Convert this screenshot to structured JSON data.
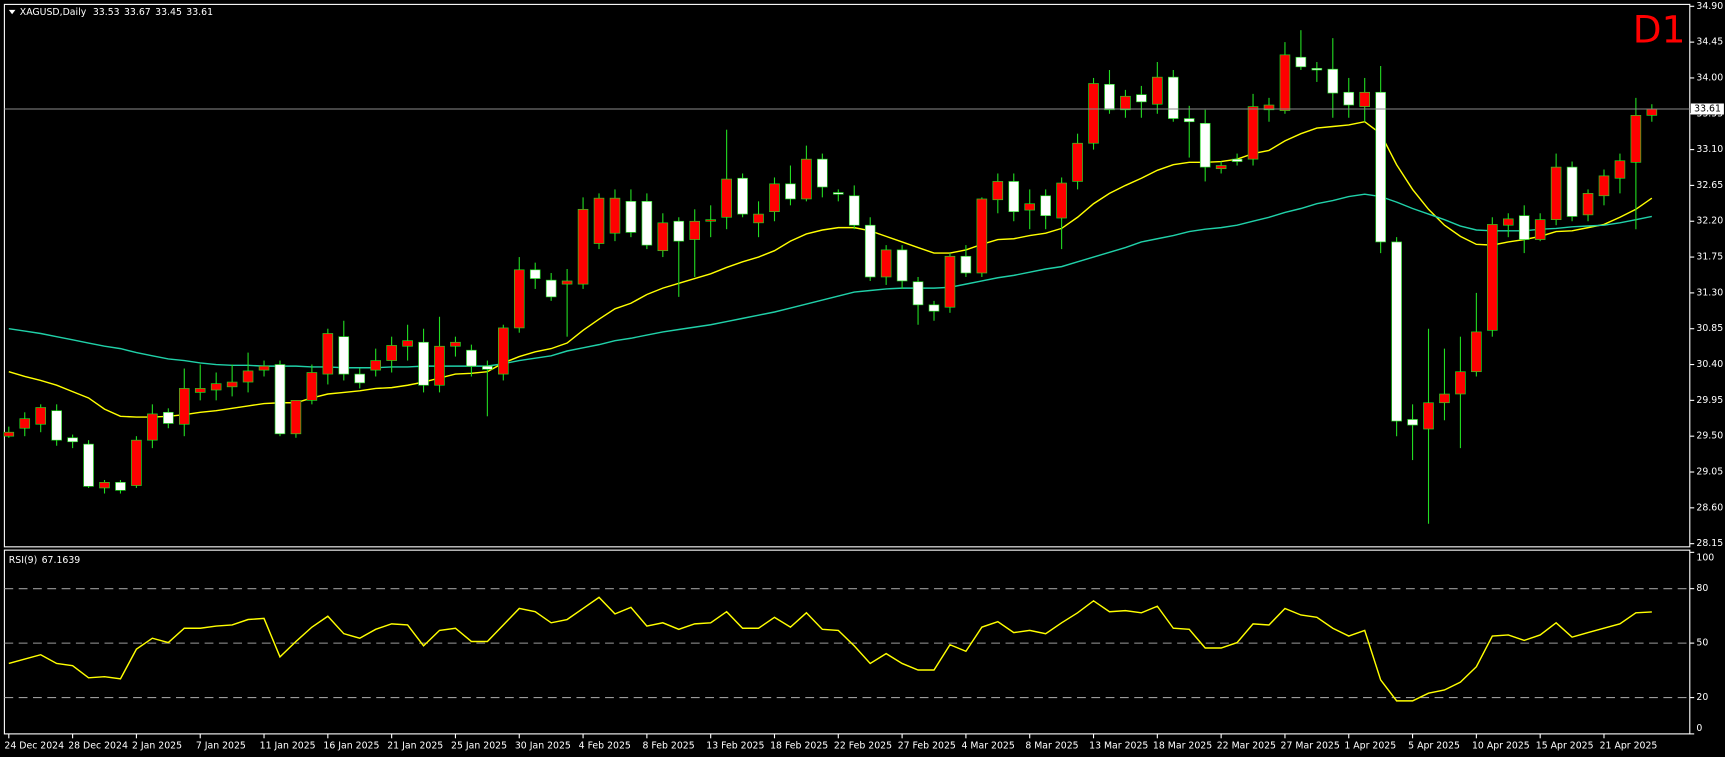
{
  "chart_data": [
    {
      "type": "candlestick",
      "symbol": "XAGUSD,Daily",
      "timeframe": "D1",
      "up_color": "#ff0000",
      "down_color": "#ffffff",
      "wick_color": "#22dd22",
      "bid_line_color": "#8a8a8a",
      "ylim": [
        28.11,
        34.91
      ],
      "yticks": [
        {
          "value": 34.9,
          "label": "34.90"
        },
        34.45,
        {
          "value": 34.0,
          "label": "34.00"
        },
        33.55,
        {
          "value": 33.1,
          "label": "33.10"
        },
        32.65,
        {
          "value": 32.2,
          "label": "32.20"
        },
        31.75,
        {
          "value": 31.3,
          "label": "31.30"
        },
        30.85,
        {
          "value": 30.4,
          "label": "30.40"
        },
        29.95,
        {
          "value": 29.5,
          "label": "29.50"
        },
        29.05,
        {
          "value": 28.6,
          "label": "28.60"
        },
        28.15
      ],
      "categories": [
        "24 Dec 2024",
        null,
        null,
        null,
        "28 Dec 2024",
        null,
        null,
        null,
        "2 Jan 2025",
        null,
        null,
        null,
        "7 Jan 2025",
        null,
        null,
        null,
        "11 Jan 2025",
        null,
        null,
        null,
        "16 Jan 2025",
        null,
        null,
        null,
        "21 Jan 2025",
        null,
        null,
        null,
        "25 Jan 2025",
        null,
        null,
        null,
        "30 Jan 2025",
        null,
        null,
        null,
        "4 Feb 2025",
        null,
        null,
        null,
        "8 Feb 2025",
        null,
        null,
        null,
        "13 Feb 2025",
        null,
        null,
        null,
        "18 Feb 2025",
        null,
        null,
        null,
        "22 Feb 2025",
        null,
        null,
        null,
        "27 Feb 2025",
        null,
        null,
        null,
        "4 Mar 2025",
        null,
        null,
        null,
        "8 Mar 2025",
        null,
        null,
        null,
        "13 Mar 2025",
        null,
        null,
        null,
        "18 Mar 2025",
        null,
        null,
        null,
        "22 Mar 2025",
        null,
        null,
        null,
        "27 Mar 2025",
        null,
        null,
        null,
        "1 Apr 2025",
        null,
        null,
        null,
        "5 Apr 2025",
        null,
        null,
        null,
        "10 Apr 2025",
        null,
        null,
        null,
        "15 Apr 2025",
        null,
        null,
        null,
        "21 Apr 2025",
        null,
        null,
        null
      ],
      "open": [
        29.5,
        29.6,
        29.65,
        29.82,
        29.48,
        29.4,
        28.85,
        28.92,
        28.88,
        29.45,
        29.8,
        29.65,
        30.05,
        30.08,
        30.12,
        30.18,
        30.33,
        30.4,
        29.53,
        29.95,
        30.28,
        30.75,
        30.28,
        30.33,
        30.45,
        30.63,
        30.68,
        30.14,
        30.63,
        30.58,
        30.38,
        30.28,
        30.86,
        31.59,
        31.46,
        31.41,
        31.41,
        31.92,
        32.05,
        32.45,
        32.45,
        31.83,
        32.2,
        31.97,
        32.2,
        32.25,
        32.74,
        32.18,
        32.32,
        32.67,
        32.48,
        32.98,
        32.56,
        32.52,
        32.15,
        31.5,
        31.84,
        31.44,
        31.15,
        31.12,
        31.76,
        31.55,
        32.47,
        32.7,
        32.34,
        32.52,
        32.24,
        32.7,
        33.18,
        33.92,
        33.6,
        33.79,
        33.67,
        34.01,
        33.49,
        33.43,
        32.86,
        32.98,
        32.98,
        33.6,
        33.59,
        34.26,
        34.12,
        34.11,
        33.82,
        33.64,
        33.82,
        31.94,
        29.71,
        29.59,
        29.92,
        30.03,
        30.31,
        30.83,
        32.15,
        32.27,
        31.97,
        32.22,
        32.88,
        32.28,
        32.52,
        32.74,
        32.94,
        33.53
      ],
      "high": [
        29.62,
        29.8,
        29.9,
        29.9,
        29.52,
        29.45,
        28.95,
        28.95,
        29.5,
        29.9,
        29.85,
        30.35,
        30.4,
        30.3,
        30.4,
        30.55,
        30.45,
        30.45,
        29.95,
        30.4,
        30.85,
        30.95,
        30.35,
        30.6,
        30.75,
        30.9,
        30.85,
        31.0,
        30.75,
        30.65,
        30.45,
        30.9,
        31.75,
        31.68,
        31.55,
        31.6,
        32.5,
        32.55,
        32.6,
        32.6,
        32.55,
        32.3,
        32.25,
        32.35,
        32.4,
        33.35,
        32.8,
        32.45,
        32.75,
        32.9,
        33.15,
        33.05,
        32.6,
        32.65,
        32.25,
        31.9,
        31.9,
        31.5,
        31.2,
        31.8,
        31.9,
        32.5,
        32.8,
        32.8,
        32.6,
        32.6,
        32.75,
        33.3,
        34.0,
        34.1,
        33.85,
        33.9,
        34.2,
        34.1,
        33.65,
        33.6,
        32.95,
        33.05,
        33.8,
        33.75,
        34.45,
        34.6,
        34.2,
        34.5,
        34.0,
        34.0,
        34.15,
        32.0,
        29.9,
        30.85,
        30.6,
        30.75,
        31.3,
        32.25,
        32.3,
        32.4,
        32.3,
        33.05,
        32.95,
        32.6,
        32.85,
        33.05,
        33.75,
        33.67
      ],
      "low": [
        29.48,
        29.5,
        29.55,
        29.38,
        29.35,
        28.85,
        28.78,
        28.78,
        28.85,
        29.35,
        29.6,
        29.5,
        29.95,
        29.95,
        30.0,
        30.05,
        30.25,
        29.5,
        29.48,
        29.9,
        30.15,
        30.2,
        30.1,
        30.25,
        30.3,
        30.45,
        30.05,
        30.05,
        30.5,
        30.25,
        29.75,
        30.2,
        30.8,
        31.35,
        31.2,
        30.75,
        31.35,
        31.85,
        31.95,
        32.0,
        31.85,
        31.75,
        31.25,
        31.5,
        32.0,
        32.1,
        32.25,
        32.0,
        32.2,
        32.4,
        32.45,
        32.5,
        32.45,
        32.1,
        31.45,
        31.4,
        31.35,
        30.9,
        30.95,
        31.05,
        31.5,
        31.5,
        32.3,
        32.2,
        32.1,
        32.1,
        31.85,
        32.6,
        33.1,
        33.55,
        33.5,
        33.5,
        33.55,
        33.45,
        33.0,
        32.7,
        32.8,
        32.9,
        32.9,
        33.45,
        33.55,
        34.1,
        33.95,
        33.5,
        33.5,
        33.45,
        31.8,
        29.5,
        29.2,
        28.4,
        29.7,
        29.35,
        30.25,
        30.75,
        32.0,
        31.8,
        31.95,
        32.15,
        32.2,
        32.2,
        32.4,
        32.55,
        32.1,
        33.45
      ],
      "close": [
        29.55,
        29.72,
        29.86,
        29.45,
        29.43,
        28.87,
        28.92,
        28.82,
        29.45,
        29.78,
        29.66,
        30.1,
        30.1,
        30.16,
        30.18,
        30.32,
        30.38,
        29.53,
        29.95,
        30.3,
        30.79,
        30.28,
        30.17,
        30.45,
        30.64,
        30.7,
        30.14,
        30.63,
        30.68,
        30.38,
        30.34,
        30.86,
        31.59,
        31.48,
        31.25,
        31.45,
        32.35,
        32.49,
        32.49,
        32.06,
        31.9,
        32.18,
        31.95,
        32.2,
        32.22,
        32.73,
        32.29,
        32.29,
        32.67,
        32.48,
        32.98,
        32.63,
        32.54,
        32.15,
        31.5,
        31.84,
        31.45,
        31.15,
        31.07,
        31.76,
        31.55,
        32.48,
        32.7,
        32.32,
        32.42,
        32.27,
        32.68,
        33.18,
        33.93,
        33.6,
        33.77,
        33.7,
        34.01,
        33.49,
        33.45,
        32.88,
        32.9,
        32.95,
        33.64,
        33.66,
        34.29,
        34.14,
        34.1,
        33.81,
        33.66,
        33.82,
        31.94,
        29.69,
        29.64,
        29.92,
        30.03,
        30.31,
        30.81,
        32.16,
        32.23,
        31.97,
        32.22,
        32.88,
        32.26,
        32.55,
        32.77,
        32.96,
        33.53,
        33.61
      ],
      "overlays": [
        {
          "color": "#ffff00",
          "values": [
            30.31,
            30.25,
            30.2,
            30.14,
            30.06,
            29.98,
            29.84,
            29.75,
            29.74,
            29.74,
            29.75,
            29.77,
            29.8,
            29.82,
            29.85,
            29.88,
            29.91,
            29.92,
            29.92,
            29.98,
            30.03,
            30.05,
            30.07,
            30.1,
            30.11,
            30.14,
            30.18,
            30.23,
            30.28,
            30.29,
            30.31,
            30.42,
            30.5,
            30.56,
            30.6,
            30.67,
            30.83,
            30.97,
            31.1,
            31.17,
            31.28,
            31.36,
            31.42,
            31.48,
            31.54,
            31.62,
            31.69,
            31.75,
            31.83,
            31.95,
            32.04,
            32.09,
            32.12,
            32.12,
            32.08,
            32.01,
            31.94,
            31.87,
            31.8,
            31.8,
            31.84,
            31.91,
            31.97,
            31.98,
            32.02,
            32.05,
            32.11,
            32.25,
            32.42,
            32.55,
            32.65,
            32.74,
            32.84,
            32.91,
            32.94,
            32.94,
            32.95,
            32.98,
            33.05,
            33.09,
            33.21,
            33.3,
            33.37,
            33.39,
            33.41,
            33.45,
            33.3,
            32.91,
            32.6,
            32.35,
            32.15,
            32.01,
            31.91,
            31.9,
            31.94,
            31.97,
            32.01,
            32.07,
            32.08,
            32.12,
            32.16,
            32.25,
            32.35,
            32.49
          ]
        },
        {
          "color": "#20d0a8",
          "values": [
            30.85,
            30.82,
            30.79,
            30.75,
            30.71,
            30.67,
            30.63,
            30.6,
            30.55,
            30.51,
            30.47,
            30.45,
            30.42,
            30.4,
            30.39,
            30.39,
            30.38,
            30.38,
            30.38,
            30.37,
            30.37,
            30.36,
            30.36,
            30.36,
            30.37,
            30.37,
            30.38,
            30.38,
            30.38,
            30.38,
            30.38,
            30.41,
            30.45,
            30.48,
            30.51,
            30.57,
            30.61,
            30.65,
            30.7,
            30.73,
            30.77,
            30.81,
            30.84,
            30.87,
            30.9,
            30.94,
            30.98,
            31.02,
            31.06,
            31.11,
            31.16,
            31.21,
            31.26,
            31.31,
            31.33,
            31.35,
            31.36,
            31.36,
            31.36,
            31.37,
            31.41,
            31.45,
            31.49,
            31.52,
            31.56,
            31.6,
            31.63,
            31.69,
            31.75,
            31.81,
            31.87,
            31.94,
            31.98,
            32.02,
            32.07,
            32.1,
            32.12,
            32.15,
            32.2,
            32.25,
            32.31,
            32.36,
            32.42,
            32.46,
            32.51,
            32.54,
            32.51,
            32.44,
            32.36,
            32.29,
            32.22,
            32.14,
            32.09,
            32.08,
            32.08,
            32.08,
            32.1,
            32.11,
            32.13,
            32.14,
            32.15,
            32.18,
            32.22,
            32.26
          ]
        }
      ]
    },
    {
      "type": "line",
      "name": "RSI(9)",
      "color": "#ffff00",
      "ylim": [
        0,
        100
      ],
      "yticks": [
        100,
        80,
        50,
        20,
        0
      ],
      "levels": [
        80,
        50,
        20
      ],
      "values": [
        38.8,
        41.2,
        43.6,
        38.8,
        37.6,
        30.9,
        31.5,
        30.3,
        46.7,
        52.7,
        50.3,
        58.2,
        58.2,
        59.4,
        60.0,
        63.0,
        63.6,
        42.4,
        50.9,
        58.8,
        64.8,
        55.2,
        52.7,
        57.6,
        60.6,
        60.0,
        48.5,
        57.0,
        58.2,
        50.9,
        50.9,
        60.0,
        69.1,
        67.3,
        61.2,
        63.0,
        69.1,
        75.2,
        66.1,
        69.7,
        59.4,
        61.2,
        57.6,
        60.6,
        61.2,
        67.3,
        58.2,
        58.2,
        64.2,
        58.8,
        66.7,
        57.6,
        57.0,
        48.5,
        38.8,
        44.2,
        38.8,
        35.2,
        35.2,
        49.1,
        45.5,
        58.8,
        61.8,
        55.8,
        57.0,
        55.2,
        61.2,
        66.7,
        73.3,
        67.3,
        67.9,
        66.7,
        70.3,
        58.2,
        57.6,
        47.3,
        47.3,
        50.3,
        60.6,
        60.0,
        69.1,
        65.5,
        64.2,
        58.2,
        53.9,
        57.0,
        29.7,
        18.2,
        18.2,
        22.4,
        24.2,
        28.5,
        37.0,
        53.9,
        54.5,
        51.5,
        54.5,
        61.2,
        53.3,
        55.8,
        58.2,
        60.6,
        66.7,
        67.1639
      ]
    }
  ]
}
